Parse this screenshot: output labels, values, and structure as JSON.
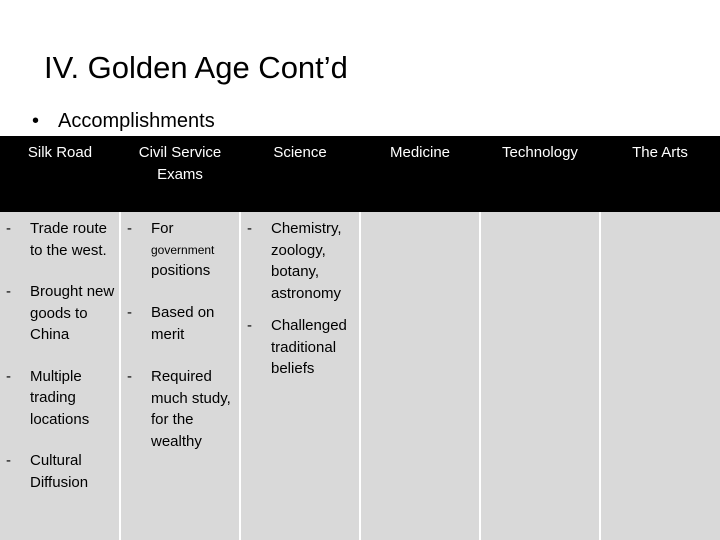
{
  "slide": {
    "title": "IV. Golden Age Cont’d",
    "bullet": "Accomplishments",
    "bullet_symbol": "•"
  },
  "table": {
    "headers": {
      "silk_road": "Silk Road",
      "civil_service_1": "Civil Service",
      "civil_service_2": "Exams",
      "science": "Science",
      "medicine": "Medicine",
      "technology": "Technology",
      "the_arts": "The Arts"
    },
    "silk_road": [
      "Trade route to the west.",
      "Brought new goods to China",
      "Multiple trading locations",
      "Cultural Diffusion"
    ],
    "civil_service": {
      "item1_a": "For",
      "item1_b": "government",
      "item1_c": "positions",
      "item2": "Based on merit",
      "item3": "Required much study, for the wealthy"
    },
    "science": [
      "Chemistry, zoology, botany, astronomy",
      "Challenged traditional beliefs"
    ],
    "dash": "-"
  },
  "colors": {
    "header_bg": "#000000",
    "cell_bg": "#d9d9d9"
  }
}
